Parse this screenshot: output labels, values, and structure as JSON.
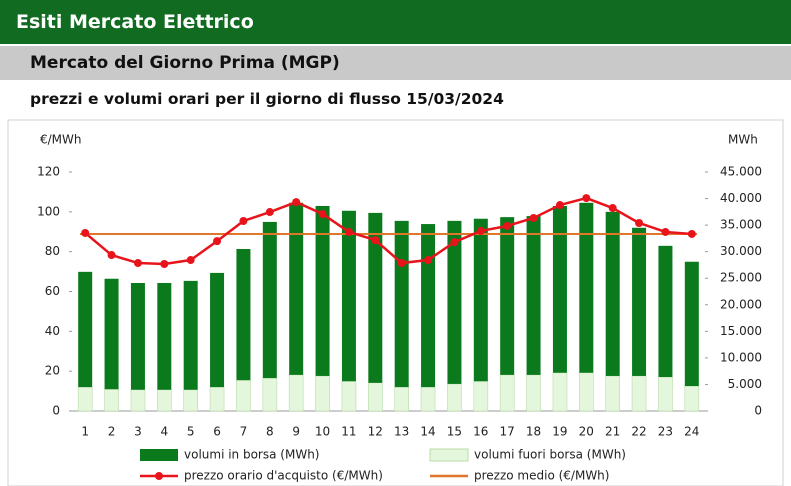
{
  "header": {
    "title": "Esiti Mercato Elettrico",
    "subtitle": "Mercato del Giorno Prima (MGP)",
    "caption": "prezzi e volumi orari per il giorno di flusso 15/03/2024"
  },
  "chart_data": {
    "type": "combo",
    "ylabel": "€/MWh",
    "y2label": "MWh",
    "categories": [
      "1",
      "2",
      "3",
      "4",
      "5",
      "6",
      "7",
      "8",
      "9",
      "10",
      "11",
      "12",
      "13",
      "14",
      "15",
      "16",
      "17",
      "18",
      "19",
      "20",
      "21",
      "22",
      "23",
      "24"
    ],
    "ylim": [
      0,
      120
    ],
    "yticks": [
      0,
      20,
      40,
      60,
      80,
      100,
      120
    ],
    "y2lim": [
      0,
      45000
    ],
    "y2ticks": [
      0,
      {
        "value": 5000,
        "label": "5.000"
      },
      {
        "value": 10000,
        "label": "10.000"
      },
      {
        "value": 15000,
        "label": "15.000"
      },
      {
        "value": 20000,
        "label": "20.000"
      },
      {
        "value": 25000,
        "label": "25.000"
      },
      {
        "value": 30000,
        "label": "30.000"
      },
      {
        "value": 35000,
        "label": "35.000"
      },
      {
        "value": 40000,
        "label": "40.000"
      },
      {
        "value": 45000,
        "label": "45.000"
      }
    ],
    "grid": false,
    "series": [
      {
        "name": "volumi in borsa (MWh)",
        "type": "bar",
        "axis": "y2",
        "color": "#0b7a1c",
        "values": [
          21700,
          20800,
          20100,
          20100,
          20500,
          21500,
          24700,
          29400,
          32400,
          32000,
          32100,
          32000,
          31300,
          30700,
          30700,
          30600,
          29700,
          29900,
          31400,
          32000,
          30900,
          27900,
          24700,
          23400
        ]
      },
      {
        "name": "volumi fuori borsa (MWh)",
        "type": "bar",
        "axis": "y2",
        "color": "#e4f6dc",
        "values": [
          4500,
          4100,
          4000,
          4000,
          4000,
          4500,
          5800,
          6200,
          6800,
          6600,
          5600,
          5300,
          4500,
          4500,
          5100,
          5600,
          6800,
          6800,
          7200,
          7200,
          6600,
          6600,
          6400,
          4700
        ]
      },
      {
        "name": "prezzo orario d'acquisto (€/MWh)",
        "type": "line",
        "axis": "y",
        "color": "#e8141c",
        "values": [
          89.4,
          78.3,
          74.3,
          73.8,
          75.8,
          85.3,
          95.4,
          99.9,
          104.9,
          98.9,
          89.9,
          85.8,
          74.3,
          75.8,
          84.8,
          90.4,
          92.9,
          96.9,
          103.4,
          106.9,
          101.9,
          94.4,
          89.9,
          88.9
        ]
      },
      {
        "name": "prezzo medio (€/MWh)",
        "type": "hline",
        "axis": "y",
        "color": "#e0762a",
        "value": 88.9
      }
    ]
  }
}
